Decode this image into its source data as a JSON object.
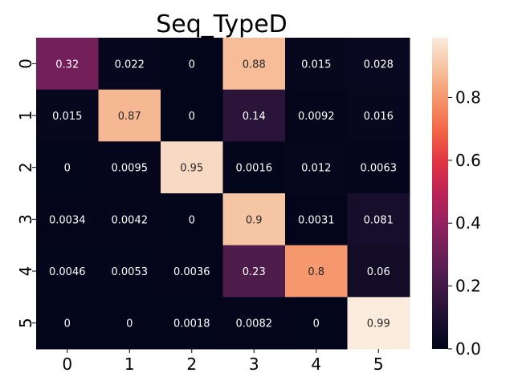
{
  "chart_data": {
    "type": "heatmap",
    "title": "Seq_TypeD",
    "x_tick_labels": [
      "0",
      "1",
      "2",
      "3",
      "4",
      "5"
    ],
    "y_tick_labels": [
      "0",
      "1",
      "2",
      "3",
      "4",
      "5"
    ],
    "values": [
      [
        0.32,
        0.022,
        0,
        0.88,
        0.015,
        0.028
      ],
      [
        0.015,
        0.87,
        0,
        0.14,
        0.0092,
        0.016
      ],
      [
        0,
        0.0095,
        0.95,
        0.0016,
        0.012,
        0.0063
      ],
      [
        0.0034,
        0.0042,
        0,
        0.9,
        0.0031,
        0.081
      ],
      [
        0.0046,
        0.0053,
        0.0036,
        0.23,
        0.8,
        0.06
      ],
      [
        0,
        0,
        0.0018,
        0.0082,
        0,
        0.99
      ]
    ],
    "cell_labels": [
      [
        "0.32",
        "0.022",
        "0",
        "0.88",
        "0.015",
        "0.028"
      ],
      [
        "0.015",
        "0.87",
        "0",
        "0.14",
        "0.0092",
        "0.016"
      ],
      [
        "0",
        "0.0095",
        "0.95",
        "0.0016",
        "0.012",
        "0.0063"
      ],
      [
        "0.0034",
        "0.0042",
        "0",
        "0.9",
        "0.0031",
        "0.081"
      ],
      [
        "0.0046",
        "0.0053",
        "0.0036",
        "0.23",
        "0.8",
        "0.06"
      ],
      [
        "0",
        "0",
        "0.0018",
        "0.0082",
        "0",
        "0.99"
      ]
    ],
    "colorbar": {
      "range": [
        0,
        0.99
      ],
      "tick_values": [
        0.0,
        0.2,
        0.4,
        0.6,
        0.8
      ],
      "tick_labels": [
        "0.0",
        "0.2",
        "0.4",
        "0.6",
        "0.8"
      ],
      "colormap": "rocket"
    }
  }
}
